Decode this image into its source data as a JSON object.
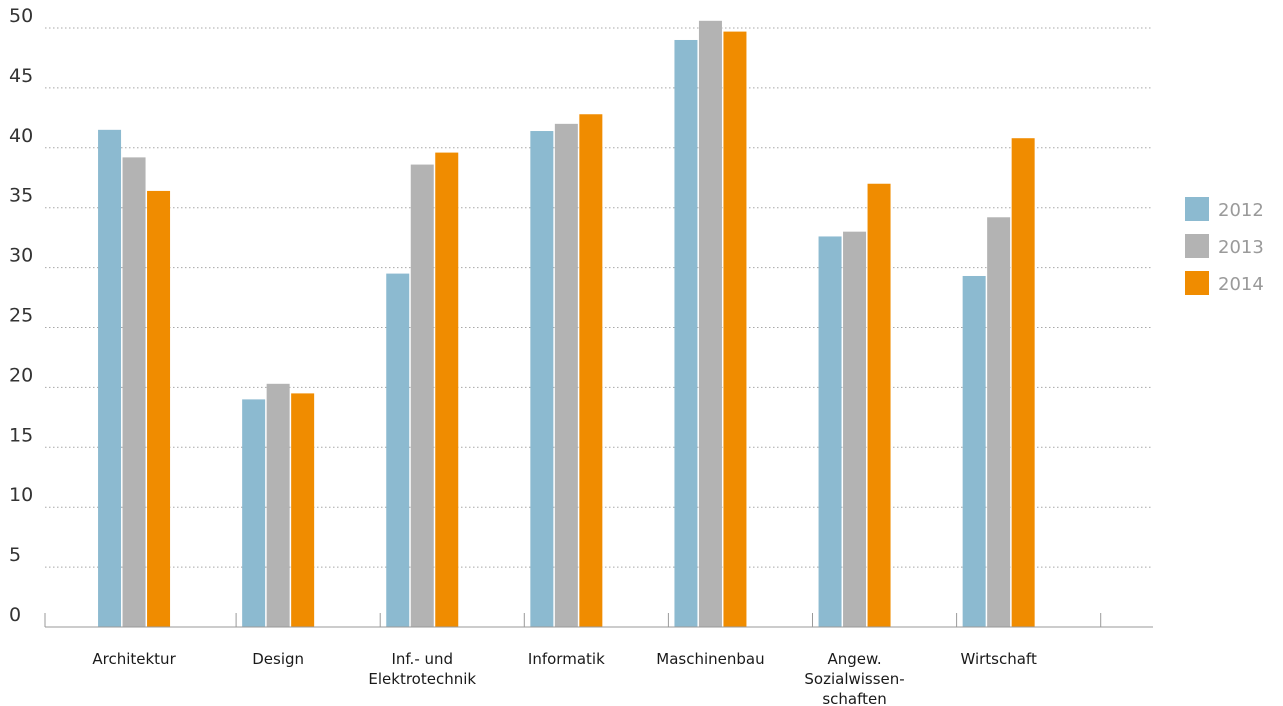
{
  "chart_data": {
    "type": "bar",
    "title": "",
    "xlabel": "",
    "ylabel": "",
    "ylim": [
      0,
      50
    ],
    "yticks": [
      0,
      5,
      10,
      15,
      20,
      25,
      30,
      35,
      40,
      45,
      50
    ],
    "grid": true,
    "legend_position": "right",
    "categories": [
      [
        "Architektur"
      ],
      [
        "Design"
      ],
      [
        "Inf.- und",
        "Elektrotechnik"
      ],
      [
        "Informatik"
      ],
      [
        "Maschinenbau"
      ],
      [
        "Angew.",
        "Sozialwissen-",
        "schaften"
      ],
      [
        "Wirtschaft"
      ]
    ],
    "series": [
      {
        "name": "2012",
        "color": "#8cbad0",
        "values": [
          41.5,
          19.0,
          29.5,
          41.4,
          49.0,
          32.6,
          29.3
        ]
      },
      {
        "name": "2013",
        "color": "#b3b3b3",
        "values": [
          39.2,
          20.3,
          38.6,
          42.0,
          50.6,
          33.0,
          34.2
        ]
      },
      {
        "name": "2014",
        "color": "#f08c00",
        "values": [
          36.4,
          19.5,
          39.6,
          42.8,
          49.7,
          37.0,
          40.8
        ]
      }
    ]
  }
}
